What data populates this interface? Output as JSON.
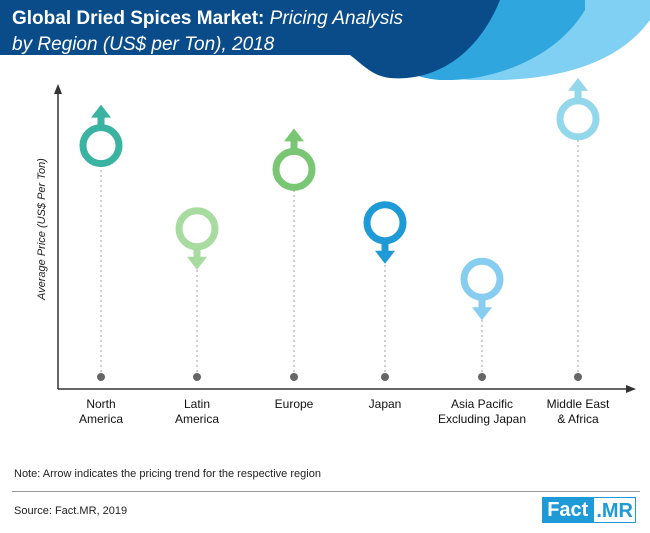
{
  "header": {
    "title_main": "Global Dried Spices Market:",
    "title_sub_line1": "Pricing Analysis",
    "title_sub_line2": "by Region (US$ per Ton), 2018"
  },
  "chart_data": {
    "type": "scatter",
    "title": "Global Dried Spices Market: Pricing Analysis by Region (US$ per Ton), 2018",
    "ylabel": "Average Price (US$ Per Ton)",
    "categories": [
      {
        "lines": [
          "North",
          "America"
        ],
        "level": 0.86,
        "trend": "up",
        "color": "#3bb3a3"
      },
      {
        "lines": [
          "Latin",
          "America"
        ],
        "level": 0.58,
        "trend": "down",
        "color": "#a8dba0"
      },
      {
        "lines": [
          "Europe"
        ],
        "level": 0.78,
        "trend": "up",
        "color": "#79c675"
      },
      {
        "lines": [
          "Japan"
        ],
        "level": 0.6,
        "trend": "down",
        "color": "#1e9ad6"
      },
      {
        "lines": [
          "Asia Pacific",
          "Excluding Japan"
        ],
        "level": 0.41,
        "trend": "down",
        "color": "#87cdf0"
      },
      {
        "lines": [
          "Middle East",
          "& Africa"
        ],
        "level": 0.95,
        "trend": "up",
        "color": "#93d7ea"
      }
    ],
    "grid": false,
    "legend": "none"
  },
  "footer": {
    "note": "Note: Arrow indicates the pricing trend for the respective region",
    "source": "Source: Fact.MR, 2019",
    "logo_left": "Fact",
    "logo_right": ".MR"
  }
}
